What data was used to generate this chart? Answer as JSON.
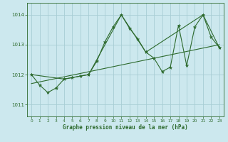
{
  "title": "",
  "xlabel": "Graphe pression niveau de la mer (hPa)",
  "xlim": [
    -0.5,
    23.5
  ],
  "ylim": [
    1010.6,
    1014.4
  ],
  "yticks": [
    1011,
    1012,
    1013,
    1014
  ],
  "xticks": [
    0,
    1,
    2,
    3,
    4,
    5,
    6,
    7,
    8,
    9,
    10,
    11,
    12,
    13,
    14,
    15,
    16,
    17,
    18,
    19,
    20,
    21,
    22,
    23
  ],
  "bg_color": "#cce8ee",
  "line_color": "#2d6a2d",
  "grid_color": "#a8cdd4",
  "series1": [
    [
      0,
      1012.0
    ],
    [
      1,
      1011.65
    ],
    [
      2,
      1011.4
    ],
    [
      3,
      1011.55
    ],
    [
      4,
      1011.85
    ],
    [
      5,
      1011.9
    ],
    [
      6,
      1011.95
    ],
    [
      7,
      1012.0
    ],
    [
      8,
      1012.45
    ],
    [
      9,
      1013.1
    ],
    [
      10,
      1013.6
    ],
    [
      11,
      1014.0
    ],
    [
      12,
      1013.55
    ],
    [
      13,
      1013.2
    ],
    [
      14,
      1012.75
    ],
    [
      15,
      1012.55
    ],
    [
      16,
      1012.1
    ],
    [
      17,
      1012.25
    ],
    [
      18,
      1013.65
    ],
    [
      19,
      1012.3
    ],
    [
      20,
      1013.6
    ],
    [
      21,
      1014.0
    ],
    [
      22,
      1013.25
    ],
    [
      23,
      1012.9
    ]
  ],
  "series2": [
    [
      0,
      1012.0
    ],
    [
      4,
      1011.85
    ],
    [
      7,
      1012.0
    ],
    [
      11,
      1014.0
    ],
    [
      14,
      1012.75
    ],
    [
      21,
      1014.0
    ],
    [
      23,
      1012.9
    ]
  ],
  "series3": [
    [
      0,
      1011.7
    ],
    [
      23,
      1013.0
    ]
  ]
}
